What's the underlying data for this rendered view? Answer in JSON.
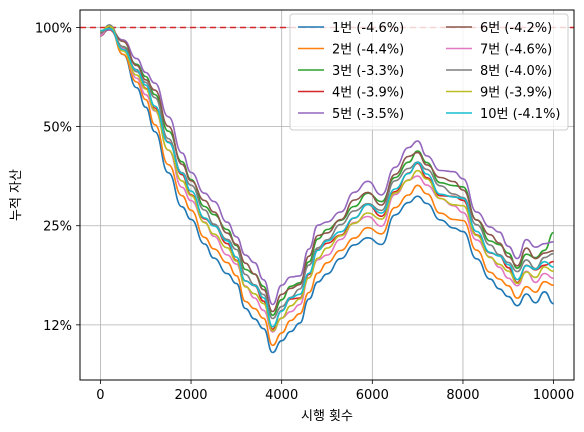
{
  "chart_data": {
    "type": "line",
    "xlabel": "시행 횟수",
    "ylabel": "누적 자산",
    "scale_y": "log",
    "xlim": [
      -450,
      10450
    ],
    "ylim": [
      0.085,
      1.13
    ],
    "x_ticks": [
      0,
      2000,
      4000,
      6000,
      8000,
      10000
    ],
    "x_tick_labels": [
      "0",
      "2000",
      "4000",
      "6000",
      "8000",
      "10000"
    ],
    "y_ticks": [
      1.0,
      0.5,
      0.25,
      0.125
    ],
    "y_tick_labels": [
      "100%",
      "50%",
      "25%",
      "12%"
    ],
    "grid": true,
    "legend": {
      "placement": "top-right",
      "columns": 2
    },
    "reference_line": {
      "y": 1.0,
      "color": "#d62728",
      "style": "dashed"
    },
    "x": [
      0,
      200,
      500,
      800,
      1000,
      1200,
      1500,
      1800,
      2000,
      2300,
      2500,
      2800,
      3000,
      3200,
      3400,
      3600,
      3800,
      4000,
      4200,
      4400,
      4600,
      4800,
      5000,
      5300,
      5600,
      5900,
      6200,
      6500,
      6800,
      7000,
      7200,
      7500,
      7800,
      8000,
      8300,
      8600,
      8800,
      9000,
      9200,
      9400,
      9600,
      9800,
      10000
    ],
    "base": [
      0.96,
      1.0,
      0.88,
      0.75,
      0.68,
      0.61,
      0.47,
      0.37,
      0.33,
      0.28,
      0.26,
      0.23,
      0.21,
      0.18,
      0.17,
      0.155,
      0.13,
      0.145,
      0.155,
      0.16,
      0.19,
      0.22,
      0.23,
      0.25,
      0.28,
      0.3,
      0.28,
      0.34,
      0.38,
      0.4,
      0.37,
      0.33,
      0.32,
      0.31,
      0.25,
      0.22,
      0.21,
      0.195,
      0.18,
      0.2,
      0.19,
      0.2,
      0.21
    ],
    "series": [
      {
        "name": "1번 (-4.6%)",
        "color": "#1f77b4",
        "factor": 0.78,
        "final": 0.143
      },
      {
        "name": "2번 (-4.4%)",
        "color": "#ff7f0e",
        "factor": 0.83,
        "final": 0.165
      },
      {
        "name": "3번 (-3.3%)",
        "color": "#2ca02c",
        "factor": 1.04,
        "final": 0.242
      },
      {
        "name": "4번 (-3.9%)",
        "color": "#d62728",
        "factor": 0.95,
        "final": 0.198
      },
      {
        "name": "5번 (-3.5%)",
        "color": "#9467bd",
        "factor": 1.12,
        "final": 0.225
      },
      {
        "name": "6번 (-4.2%)",
        "color": "#8c564b",
        "factor": 1.05,
        "final": 0.208
      },
      {
        "name": "7번 (-4.6%)",
        "color": "#e377c2",
        "factor": 0.9,
        "final": 0.17
      },
      {
        "name": "8번 (-4.0%)",
        "color": "#7f7f7f",
        "factor": 0.99,
        "final": 0.203
      },
      {
        "name": "9번 (-3.9%)",
        "color": "#bcbd22",
        "factor": 0.92,
        "final": 0.182
      },
      {
        "name": "10번 (-4.1%)",
        "color": "#17becf",
        "factor": 0.96,
        "final": 0.19
      }
    ]
  }
}
